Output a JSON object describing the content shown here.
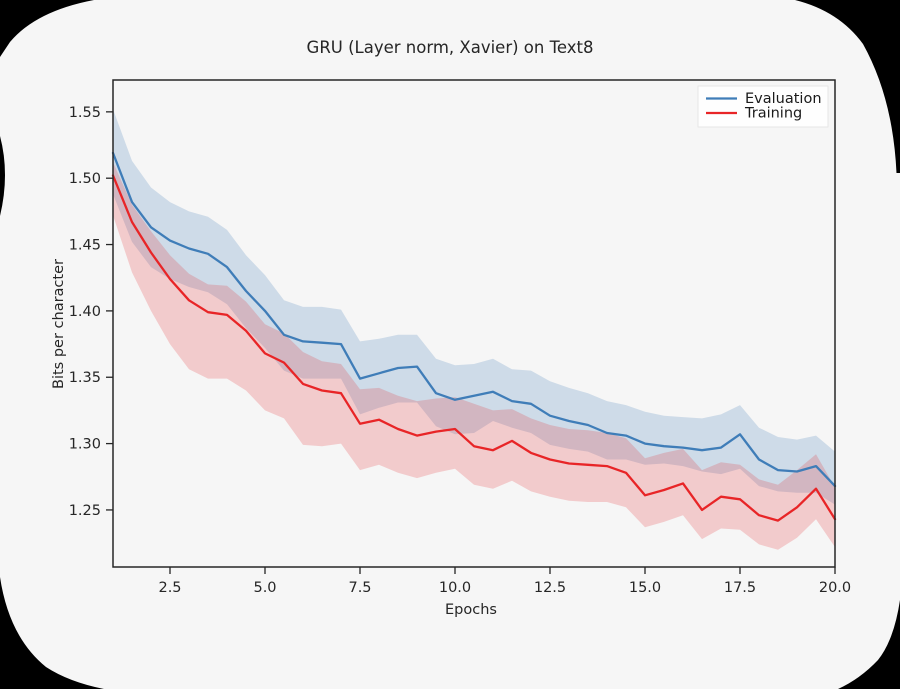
{
  "window": {
    "figure_background": "#f6f6f6",
    "outside_color": "#000000",
    "spine_color": "#262626"
  },
  "figure": {
    "title": "GRU (Layer norm, Xavier) on Text8",
    "xlabel": "Epochs",
    "ylabel": "Bits per character"
  },
  "legend": {
    "entries": [
      {
        "label": "Evaluation",
        "color": "#3f7db8"
      },
      {
        "label": "Training",
        "color": "#e82527"
      }
    ]
  },
  "chart_data": {
    "type": "line",
    "title": "GRU (Layer norm, Xavier) on Text8",
    "xlabel": "Epochs",
    "ylabel": "Bits per character",
    "xlim": [
      1,
      20
    ],
    "ylim": [
      1.207,
      1.574
    ],
    "grid": false,
    "legend_position": "upper right",
    "x_tick_values": [
      2.5,
      5.0,
      7.5,
      10.0,
      12.5,
      15.0,
      17.5,
      20.0
    ],
    "x_tick_labels": [
      "2.5",
      "5.0",
      "7.5",
      "10.0",
      "12.5",
      "15.0",
      "17.5",
      "20.0"
    ],
    "y_tick_values": [
      1.55,
      1.5,
      1.45,
      1.4,
      1.35,
      1.3,
      1.25
    ],
    "y_tick_labels": [
      "1.55",
      "1.50",
      "1.45",
      "1.40",
      "1.35",
      "1.30",
      "1.25"
    ],
    "x": [
      1,
      1.5,
      2,
      2.5,
      3,
      3.5,
      4,
      4.5,
      5,
      5.5,
      6,
      6.5,
      7,
      7.5,
      8,
      8.5,
      9,
      9.5,
      10,
      10.5,
      11,
      11.5,
      12,
      12.5,
      13,
      13.5,
      14,
      14.5,
      15,
      15.5,
      16,
      16.5,
      17,
      17.5,
      18,
      18.5,
      19,
      19.5,
      20
    ],
    "series": [
      {
        "name": "Evaluation",
        "color": "#3f7db8",
        "band_alpha": 0.22,
        "values": [
          1.519,
          1.482,
          1.463,
          1.453,
          1.447,
          1.443,
          1.433,
          1.415,
          1.4,
          1.382,
          1.377,
          1.376,
          1.375,
          1.349,
          1.353,
          1.357,
          1.358,
          1.338,
          1.333,
          1.336,
          1.339,
          1.332,
          1.33,
          1.321,
          1.317,
          1.314,
          1.308,
          1.306,
          1.3,
          1.298,
          1.297,
          1.295,
          1.297,
          1.307,
          1.288,
          1.28,
          1.279,
          1.283,
          1.268
        ],
        "band_upper": [
          1.552,
          1.513,
          1.493,
          1.482,
          1.475,
          1.471,
          1.461,
          1.442,
          1.427,
          1.408,
          1.403,
          1.403,
          1.401,
          1.377,
          1.379,
          1.382,
          1.382,
          1.364,
          1.359,
          1.36,
          1.364,
          1.356,
          1.355,
          1.347,
          1.342,
          1.338,
          1.332,
          1.329,
          1.324,
          1.321,
          1.32,
          1.319,
          1.322,
          1.329,
          1.312,
          1.305,
          1.303,
          1.306,
          1.294
        ],
        "band_lower": [
          1.488,
          1.452,
          1.433,
          1.424,
          1.418,
          1.414,
          1.405,
          1.387,
          1.372,
          1.355,
          1.349,
          1.349,
          1.349,
          1.322,
          1.327,
          1.331,
          1.331,
          1.313,
          1.307,
          1.308,
          1.317,
          1.312,
          1.308,
          1.299,
          1.296,
          1.294,
          1.288,
          1.288,
          1.284,
          1.285,
          1.283,
          1.279,
          1.277,
          1.281,
          1.268,
          1.264,
          1.263,
          1.263,
          1.254
        ]
      },
      {
        "name": "Training",
        "color": "#e82527",
        "band_alpha": 0.2,
        "values": [
          1.502,
          1.467,
          1.444,
          1.424,
          1.408,
          1.399,
          1.397,
          1.385,
          1.368,
          1.361,
          1.345,
          1.34,
          1.338,
          1.315,
          1.318,
          1.311,
          1.306,
          1.309,
          1.311,
          1.298,
          1.295,
          1.302,
          1.293,
          1.288,
          1.285,
          1.284,
          1.283,
          1.278,
          1.261,
          1.265,
          1.27,
          1.25,
          1.26,
          1.258,
          1.246,
          1.242,
          1.252,
          1.266,
          1.243
        ],
        "band_upper": [
          1.512,
          1.48,
          1.46,
          1.442,
          1.428,
          1.42,
          1.419,
          1.407,
          1.39,
          1.383,
          1.369,
          1.362,
          1.36,
          1.341,
          1.342,
          1.336,
          1.332,
          1.334,
          1.335,
          1.33,
          1.325,
          1.326,
          1.319,
          1.314,
          1.311,
          1.31,
          1.308,
          1.304,
          1.289,
          1.293,
          1.296,
          1.28,
          1.286,
          1.284,
          1.273,
          1.269,
          1.28,
          1.292,
          1.267
        ],
        "band_lower": [
          1.472,
          1.429,
          1.4,
          1.375,
          1.356,
          1.349,
          1.349,
          1.34,
          1.325,
          1.319,
          1.299,
          1.298,
          1.3,
          1.28,
          1.284,
          1.278,
          1.274,
          1.278,
          1.281,
          1.269,
          1.266,
          1.272,
          1.264,
          1.26,
          1.257,
          1.256,
          1.256,
          1.252,
          1.237,
          1.241,
          1.246,
          1.228,
          1.236,
          1.235,
          1.224,
          1.22,
          1.229,
          1.243,
          1.222
        ]
      }
    ]
  }
}
